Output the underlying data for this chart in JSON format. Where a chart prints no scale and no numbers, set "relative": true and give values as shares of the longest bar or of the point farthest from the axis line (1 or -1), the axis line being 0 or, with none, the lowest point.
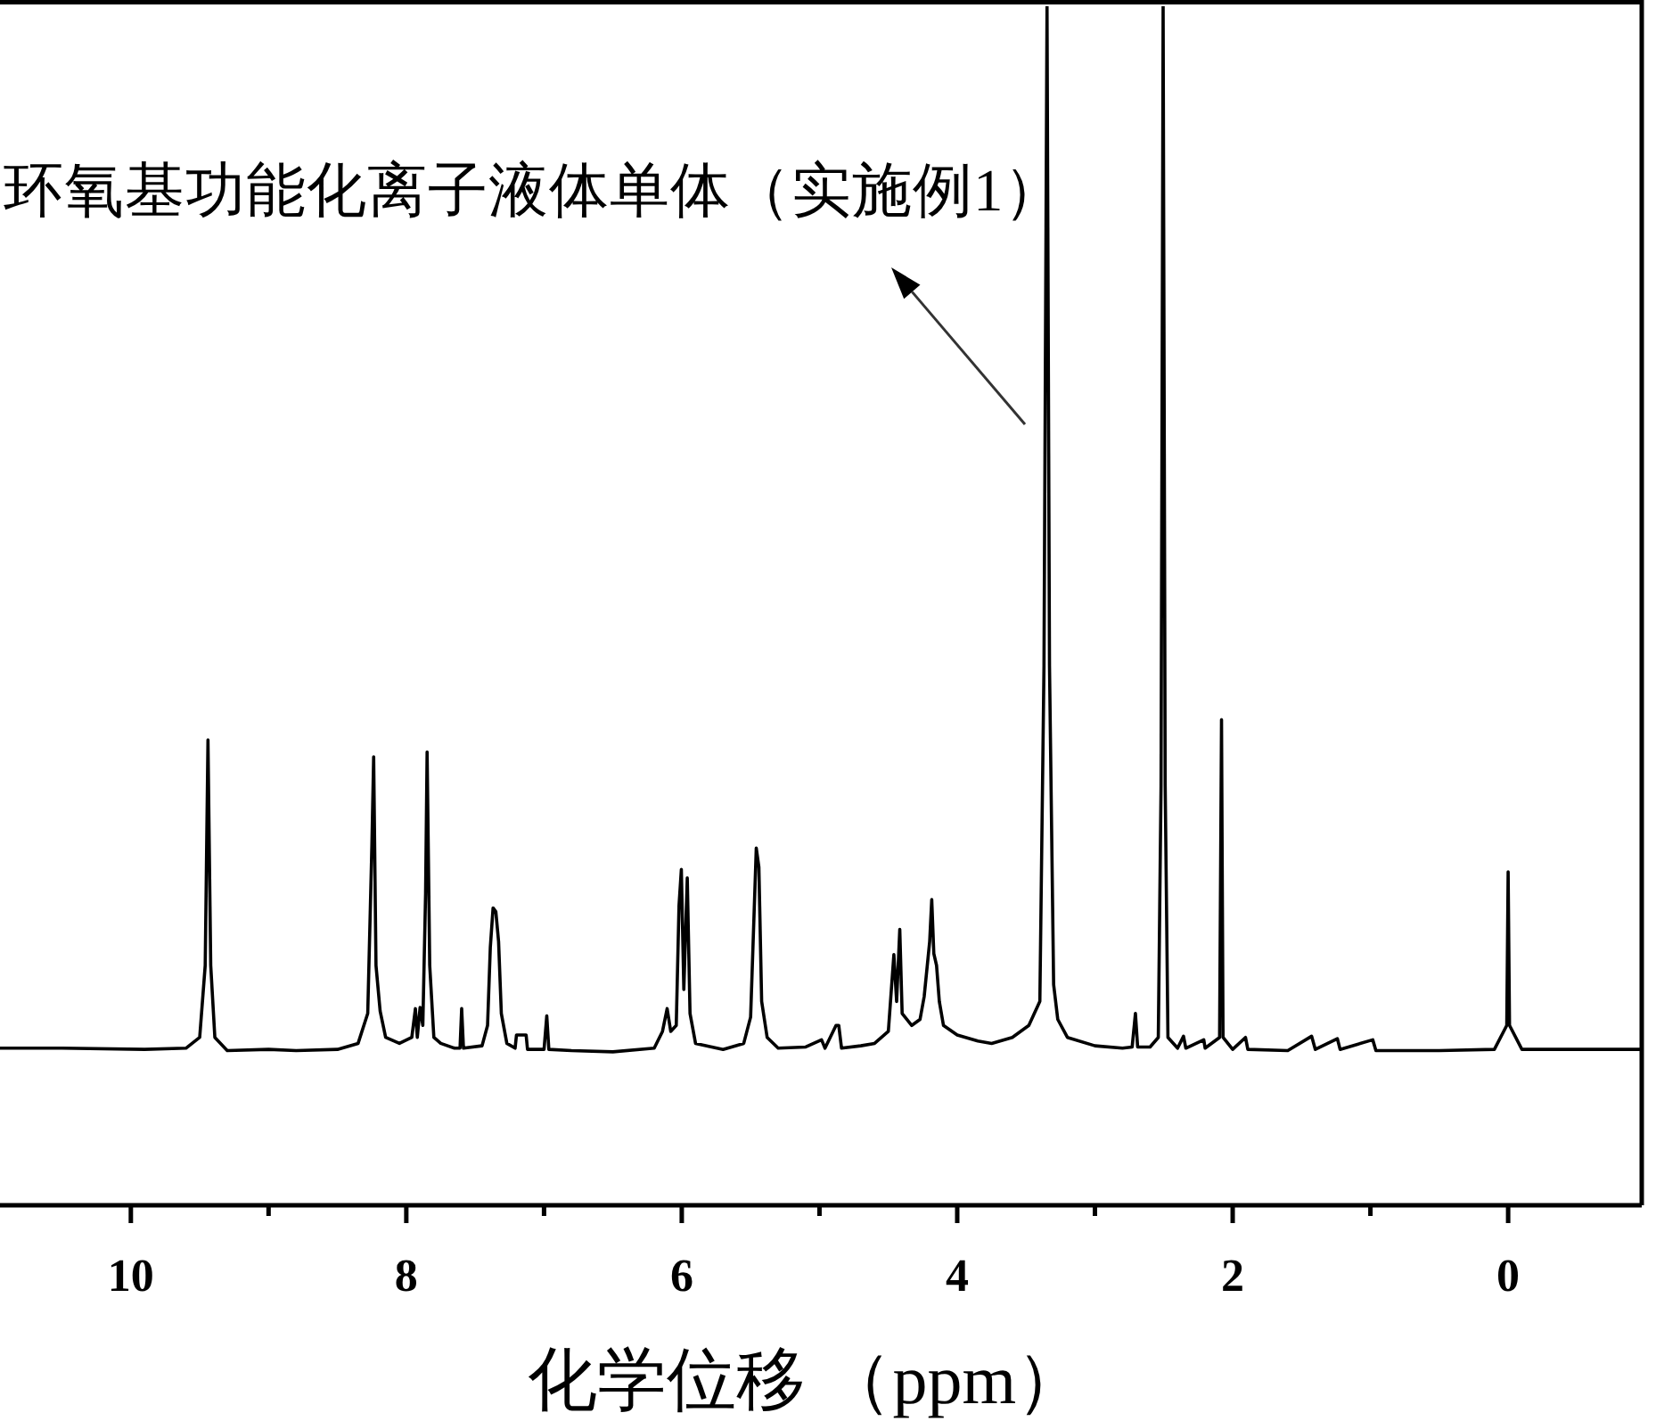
{
  "chart_data": {
    "type": "line",
    "relative": true,
    "xlabel": "化学位移 （ppm）",
    "xlim": [
      10.95,
      -0.97
    ],
    "xticks": [
      10,
      {
        "value": 9,
        "label": null
      },
      8,
      {
        "value": 7,
        "label": null
      },
      6,
      {
        "value": 5,
        "label": null
      },
      4,
      {
        "value": 3,
        "label": null
      },
      2,
      {
        "value": 1,
        "label": null
      },
      0
    ],
    "annotations": [
      "环氧基功能化离子液体单体（实施例1）"
    ],
    "series": [
      {
        "color": "#000000",
        "x": [
          10.95,
          10.5,
          9.9,
          9.6,
          9.5,
          9.46,
          9.44,
          9.42,
          9.39,
          9.3,
          9.0,
          8.8,
          8.5,
          8.35,
          8.28,
          8.25,
          8.237,
          8.22,
          8.19,
          8.15,
          8.05,
          7.96,
          7.934,
          7.92,
          7.9,
          7.88,
          7.86,
          7.849,
          7.83,
          7.8,
          7.75,
          7.65,
          7.61,
          7.598,
          7.585,
          7.45,
          7.41,
          7.39,
          7.37,
          7.35,
          7.33,
          7.31,
          7.27,
          7.21,
          7.2,
          7.13,
          7.12,
          7.0,
          6.98,
          6.965,
          6.8,
          6.5,
          6.2,
          6.14,
          6.106,
          6.08,
          6.04,
          6.02,
          6.003,
          5.985,
          5.96,
          5.94,
          5.9,
          5.7,
          5.55,
          5.5,
          5.47,
          5.459,
          5.44,
          5.42,
          5.38,
          5.3,
          5.1,
          4.985,
          4.96,
          4.88,
          4.86,
          4.84,
          4.7,
          4.6,
          4.5,
          4.46,
          4.44,
          4.417,
          4.4,
          4.33,
          4.27,
          4.24,
          4.2,
          4.185,
          4.17,
          4.15,
          4.13,
          4.1,
          4.0,
          3.85,
          3.75,
          3.6,
          3.48,
          3.4,
          3.37,
          3.348,
          3.33,
          3.3,
          3.27,
          3.2,
          3.0,
          2.8,
          2.73,
          2.706,
          2.69,
          2.6,
          2.54,
          2.52,
          2.505,
          2.49,
          2.47,
          2.4,
          2.357,
          2.34,
          2.21,
          2.2,
          2.095,
          2.081,
          2.07,
          2.0,
          1.907,
          1.89,
          1.6,
          1.427,
          1.4,
          1.24,
          1.22,
          0.983,
          0.96,
          0.5,
          0.1,
          0.01,
          0.0,
          -0.01,
          -0.1,
          -0.97
        ],
        "values": [
          0.131,
          0.131,
          0.13,
          0.131,
          0.14,
          0.2,
          0.388,
          0.2,
          0.14,
          0.129,
          0.13,
          0.129,
          0.13,
          0.135,
          0.16,
          0.3,
          0.374,
          0.2,
          0.162,
          0.14,
          0.135,
          0.14,
          0.164,
          0.14,
          0.165,
          0.15,
          0.26,
          0.378,
          0.2,
          0.14,
          0.135,
          0.131,
          0.131,
          0.164,
          0.131,
          0.133,
          0.15,
          0.215,
          0.248,
          0.245,
          0.22,
          0.16,
          0.135,
          0.131,
          0.142,
          0.142,
          0.13,
          0.13,
          0.158,
          0.13,
          0.129,
          0.128,
          0.131,
          0.145,
          0.164,
          0.145,
          0.15,
          0.25,
          0.28,
          0.18,
          0.273,
          0.16,
          0.135,
          0.13,
          0.135,
          0.157,
          0.26,
          0.298,
          0.282,
          0.17,
          0.14,
          0.131,
          0.132,
          0.138,
          0.131,
          0.15,
          0.15,
          0.131,
          0.133,
          0.135,
          0.145,
          0.209,
          0.17,
          0.23,
          0.16,
          0.15,
          0.155,
          0.174,
          0.22,
          0.255,
          0.21,
          0.2,
          0.17,
          0.15,
          0.142,
          0.137,
          0.135,
          0.14,
          0.15,
          0.17,
          0.45,
          1.0,
          0.45,
          0.184,
          0.155,
          0.14,
          0.133,
          0.131,
          0.132,
          0.16,
          0.132,
          0.132,
          0.14,
          0.35,
          1.0,
          0.35,
          0.14,
          0.131,
          0.141,
          0.131,
          0.138,
          0.131,
          0.14,
          0.405,
          0.14,
          0.13,
          0.14,
          0.13,
          0.129,
          0.141,
          0.13,
          0.139,
          0.13,
          0.138,
          0.129,
          0.129,
          0.13,
          0.15,
          0.278,
          0.15,
          0.13,
          0.13
        ]
      }
    ]
  }
}
